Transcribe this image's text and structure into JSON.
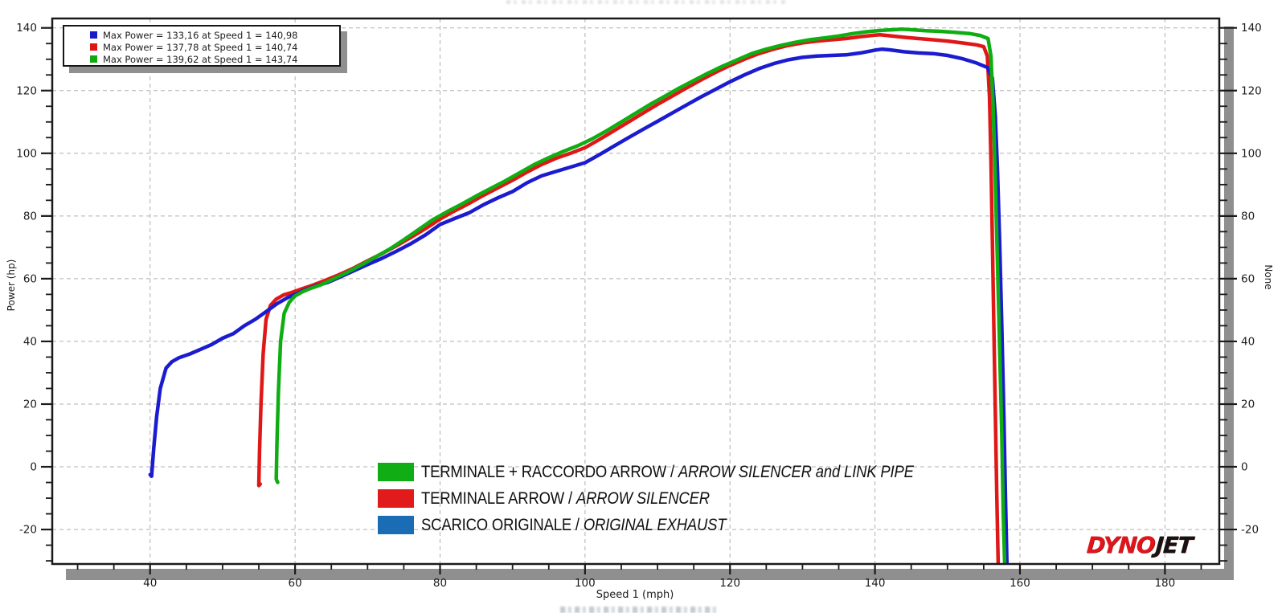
{
  "chart_data": {
    "type": "line",
    "title": "",
    "xlabel": "Speed 1 (mph)",
    "ylabel_left": "Power (hp)",
    "ylabel_right": "None",
    "xlim": [
      26.5,
      187.5
    ],
    "ylim": [
      -31,
      143
    ],
    "x_major_ticks": [
      40,
      60,
      80,
      100,
      120,
      140,
      160,
      180
    ],
    "y_major_ticks": [
      -20,
      0,
      20,
      40,
      60,
      80,
      100,
      120,
      140
    ],
    "x_minor_step": 5,
    "y_minor_step": 5,
    "grid": true,
    "legend_position": "top-left",
    "series": [
      {
        "name": "TERMINALE ARROW / ARROW SILENCER",
        "color": "#df1717",
        "max_power": "137,78",
        "max_power_speed": "140,74",
        "points": [
          [
            55.2,
            -5.5
          ],
          [
            55.0,
            -6
          ],
          [
            55.1,
            5
          ],
          [
            55.3,
            20
          ],
          [
            55.6,
            36
          ],
          [
            56.0,
            47
          ],
          [
            56.6,
            51.5
          ],
          [
            57.4,
            53.5
          ],
          [
            58.4,
            54.8
          ],
          [
            59.5,
            55.6
          ],
          [
            61,
            56.8
          ],
          [
            62.5,
            58
          ],
          [
            64,
            59.3
          ],
          [
            66,
            61.2
          ],
          [
            68,
            63.3
          ],
          [
            70,
            65.7
          ],
          [
            72,
            68
          ],
          [
            74,
            70.5
          ],
          [
            76,
            73.2
          ],
          [
            78,
            76
          ],
          [
            80,
            79
          ],
          [
            82,
            81.6
          ],
          [
            84,
            84
          ],
          [
            86,
            86.6
          ],
          [
            88,
            89
          ],
          [
            90,
            91.4
          ],
          [
            92,
            94
          ],
          [
            94,
            96.4
          ],
          [
            96,
            98.4
          ],
          [
            98,
            100
          ],
          [
            100,
            101.8
          ],
          [
            102,
            104.4
          ],
          [
            104,
            107.2
          ],
          [
            106,
            110
          ],
          [
            108,
            112.8
          ],
          [
            110,
            115.6
          ],
          [
            112,
            118.2
          ],
          [
            114,
            120.8
          ],
          [
            116,
            123.4
          ],
          [
            118,
            125.8
          ],
          [
            120,
            128
          ],
          [
            122,
            130
          ],
          [
            124,
            131.8
          ],
          [
            126,
            133.2
          ],
          [
            128,
            134.4
          ],
          [
            130,
            135.2
          ],
          [
            132,
            135.8
          ],
          [
            134,
            136.2
          ],
          [
            136,
            136.6
          ],
          [
            138,
            137.2
          ],
          [
            140,
            137.7
          ],
          [
            140.7,
            137.8
          ],
          [
            142,
            137.5
          ],
          [
            144,
            137
          ],
          [
            146,
            136.6
          ],
          [
            148,
            136.2
          ],
          [
            150,
            135.8
          ],
          [
            152,
            135.2
          ],
          [
            154,
            134.6
          ],
          [
            155,
            134
          ],
          [
            155.5,
            131
          ],
          [
            155.8,
            118
          ],
          [
            156.0,
            98
          ],
          [
            156.2,
            72
          ],
          [
            156.4,
            45
          ],
          [
            156.6,
            18
          ],
          [
            156.8,
            -8
          ],
          [
            157.0,
            -31
          ]
        ]
      },
      {
        "name": "SCARICO ORIGINALE / ORIGINAL EXHAUST",
        "color": "#1b1bd0",
        "max_power": "133,16",
        "max_power_speed": "140,98",
        "points": [
          [
            40.0,
            -2.5
          ],
          [
            40.2,
            -3
          ],
          [
            40.5,
            6
          ],
          [
            40.9,
            16
          ],
          [
            41.4,
            25
          ],
          [
            42.2,
            31.5
          ],
          [
            43,
            33.5
          ],
          [
            44,
            34.8
          ],
          [
            45.5,
            36
          ],
          [
            47,
            37.5
          ],
          [
            48.5,
            39
          ],
          [
            50,
            41
          ],
          [
            51.5,
            42.5
          ],
          [
            53,
            45
          ],
          [
            54.5,
            47
          ],
          [
            56,
            49.5
          ],
          [
            57.5,
            52
          ],
          [
            59,
            54
          ],
          [
            60,
            55
          ],
          [
            61.5,
            56.5
          ],
          [
            63,
            57.8
          ],
          [
            64.5,
            58.8
          ],
          [
            66,
            60.3
          ],
          [
            68,
            62.4
          ],
          [
            70,
            64.5
          ],
          [
            72,
            66.5
          ],
          [
            74,
            68.8
          ],
          [
            76,
            71.2
          ],
          [
            78,
            74
          ],
          [
            80,
            77.3
          ],
          [
            82,
            79.2
          ],
          [
            84,
            81
          ],
          [
            86,
            83.6
          ],
          [
            88,
            85.8
          ],
          [
            90,
            87.8
          ],
          [
            92,
            90.6
          ],
          [
            94,
            92.8
          ],
          [
            96,
            94.2
          ],
          [
            98,
            95.6
          ],
          [
            100,
            97
          ],
          [
            102,
            99.6
          ],
          [
            104,
            102.3
          ],
          [
            106,
            105
          ],
          [
            108,
            107.6
          ],
          [
            110,
            110.2
          ],
          [
            112,
            112.8
          ],
          [
            114,
            115.4
          ],
          [
            116,
            118
          ],
          [
            118,
            120.4
          ],
          [
            120,
            122.8
          ],
          [
            122,
            125
          ],
          [
            124,
            127
          ],
          [
            126,
            128.6
          ],
          [
            128,
            129.8
          ],
          [
            130,
            130.6
          ],
          [
            132,
            131
          ],
          [
            134,
            131.2
          ],
          [
            136,
            131.4
          ],
          [
            138,
            132
          ],
          [
            140,
            132.9
          ],
          [
            141,
            133.2
          ],
          [
            142,
            133
          ],
          [
            144,
            132.4
          ],
          [
            146,
            132
          ],
          [
            148,
            131.8
          ],
          [
            150,
            131.2
          ],
          [
            152,
            130.2
          ],
          [
            154,
            128.8
          ],
          [
            155.5,
            127.4
          ],
          [
            156.2,
            124
          ],
          [
            156.6,
            112
          ],
          [
            156.9,
            95
          ],
          [
            157.2,
            72
          ],
          [
            157.5,
            45
          ],
          [
            157.8,
            15
          ],
          [
            158.0,
            -10
          ],
          [
            158.2,
            -31
          ]
        ]
      },
      {
        "name": "TERMINALE + RACCORDO ARROW / ARROW SILENCER and LINK PIPE",
        "color": "#0fad12",
        "max_power": "139,62",
        "max_power_speed": "143,74",
        "points": [
          [
            57.6,
            -5
          ],
          [
            57.4,
            -4
          ],
          [
            57.5,
            8
          ],
          [
            57.7,
            24
          ],
          [
            58.0,
            40
          ],
          [
            58.5,
            49
          ],
          [
            59.2,
            52.5
          ],
          [
            60,
            54.5
          ],
          [
            61,
            55.8
          ],
          [
            62,
            56.8
          ],
          [
            63.5,
            58
          ],
          [
            65,
            59.6
          ],
          [
            67,
            61.8
          ],
          [
            69,
            64.2
          ],
          [
            71,
            66.8
          ],
          [
            73,
            69.4
          ],
          [
            75,
            72.4
          ],
          [
            77,
            75.6
          ],
          [
            79,
            78.8
          ],
          [
            81,
            81.4
          ],
          [
            83,
            83.8
          ],
          [
            85,
            86.4
          ],
          [
            87,
            88.8
          ],
          [
            89,
            91.2
          ],
          [
            91,
            93.8
          ],
          [
            93,
            96.4
          ],
          [
            95,
            98.6
          ],
          [
            97,
            100.6
          ],
          [
            99,
            102.4
          ],
          [
            101,
            104.6
          ],
          [
            103,
            107.2
          ],
          [
            105,
            110
          ],
          [
            107,
            112.8
          ],
          [
            109,
            115.6
          ],
          [
            111,
            118.2
          ],
          [
            113,
            120.8
          ],
          [
            115,
            123.2
          ],
          [
            117,
            125.6
          ],
          [
            119,
            127.8
          ],
          [
            121,
            129.8
          ],
          [
            123,
            131.8
          ],
          [
            125,
            133.2
          ],
          [
            127,
            134.4
          ],
          [
            129,
            135.4
          ],
          [
            131,
            136.2
          ],
          [
            133,
            136.8
          ],
          [
            135,
            137.4
          ],
          [
            137,
            138.2
          ],
          [
            139,
            138.8
          ],
          [
            141,
            139.2
          ],
          [
            143,
            139.5
          ],
          [
            143.7,
            139.6
          ],
          [
            145,
            139.4
          ],
          [
            147,
            139.1
          ],
          [
            149,
            138.9
          ],
          [
            151,
            138.6
          ],
          [
            153,
            138.2
          ],
          [
            154.5,
            137.6
          ],
          [
            155.6,
            136.6
          ],
          [
            156.0,
            131
          ],
          [
            156.3,
            115
          ],
          [
            156.6,
            92
          ],
          [
            156.9,
            65
          ],
          [
            157.2,
            38
          ],
          [
            157.5,
            10
          ],
          [
            157.7,
            -15
          ],
          [
            157.9,
            -31
          ]
        ]
      }
    ]
  },
  "stats_legend": {
    "items": [
      {
        "color": "#1b1bcc",
        "label": "Max Power = 133,16 at Speed 1 = 140,98"
      },
      {
        "color": "#dd1515",
        "label": "Max Power = 137,78 at Speed 1 = 140,74"
      },
      {
        "color": "#11a811",
        "label": "Max Power = 139,62 at Speed 1 = 143,74"
      }
    ]
  },
  "series_legend": {
    "items": [
      {
        "color": "#10ae14",
        "label_main": "TERMINALE + RACCORDO ARROW / ",
        "label_italic": "ARROW SILENCER and LINK PIPE"
      },
      {
        "color": "#e11b1b",
        "label_main": "TERMINALE ARROW / ",
        "label_italic": "ARROW SILENCER"
      },
      {
        "color": "#1a6cb4",
        "label_main": "SCARICO ORIGINALE / ",
        "label_italic": "ORIGINAL EXHAUST"
      }
    ]
  },
  "axes": {
    "xlabel": "Speed 1 (mph)",
    "ylabel_left": "Power (hp)",
    "ylabel_right": "None"
  },
  "logo": {
    "part1": "DYNO",
    "part2": "JET"
  },
  "colors": {
    "frame": "#1a1a1a",
    "grid": "#b0b0b0",
    "shadow": "#8f8f8f",
    "tick_text": "#1c1c1c"
  }
}
